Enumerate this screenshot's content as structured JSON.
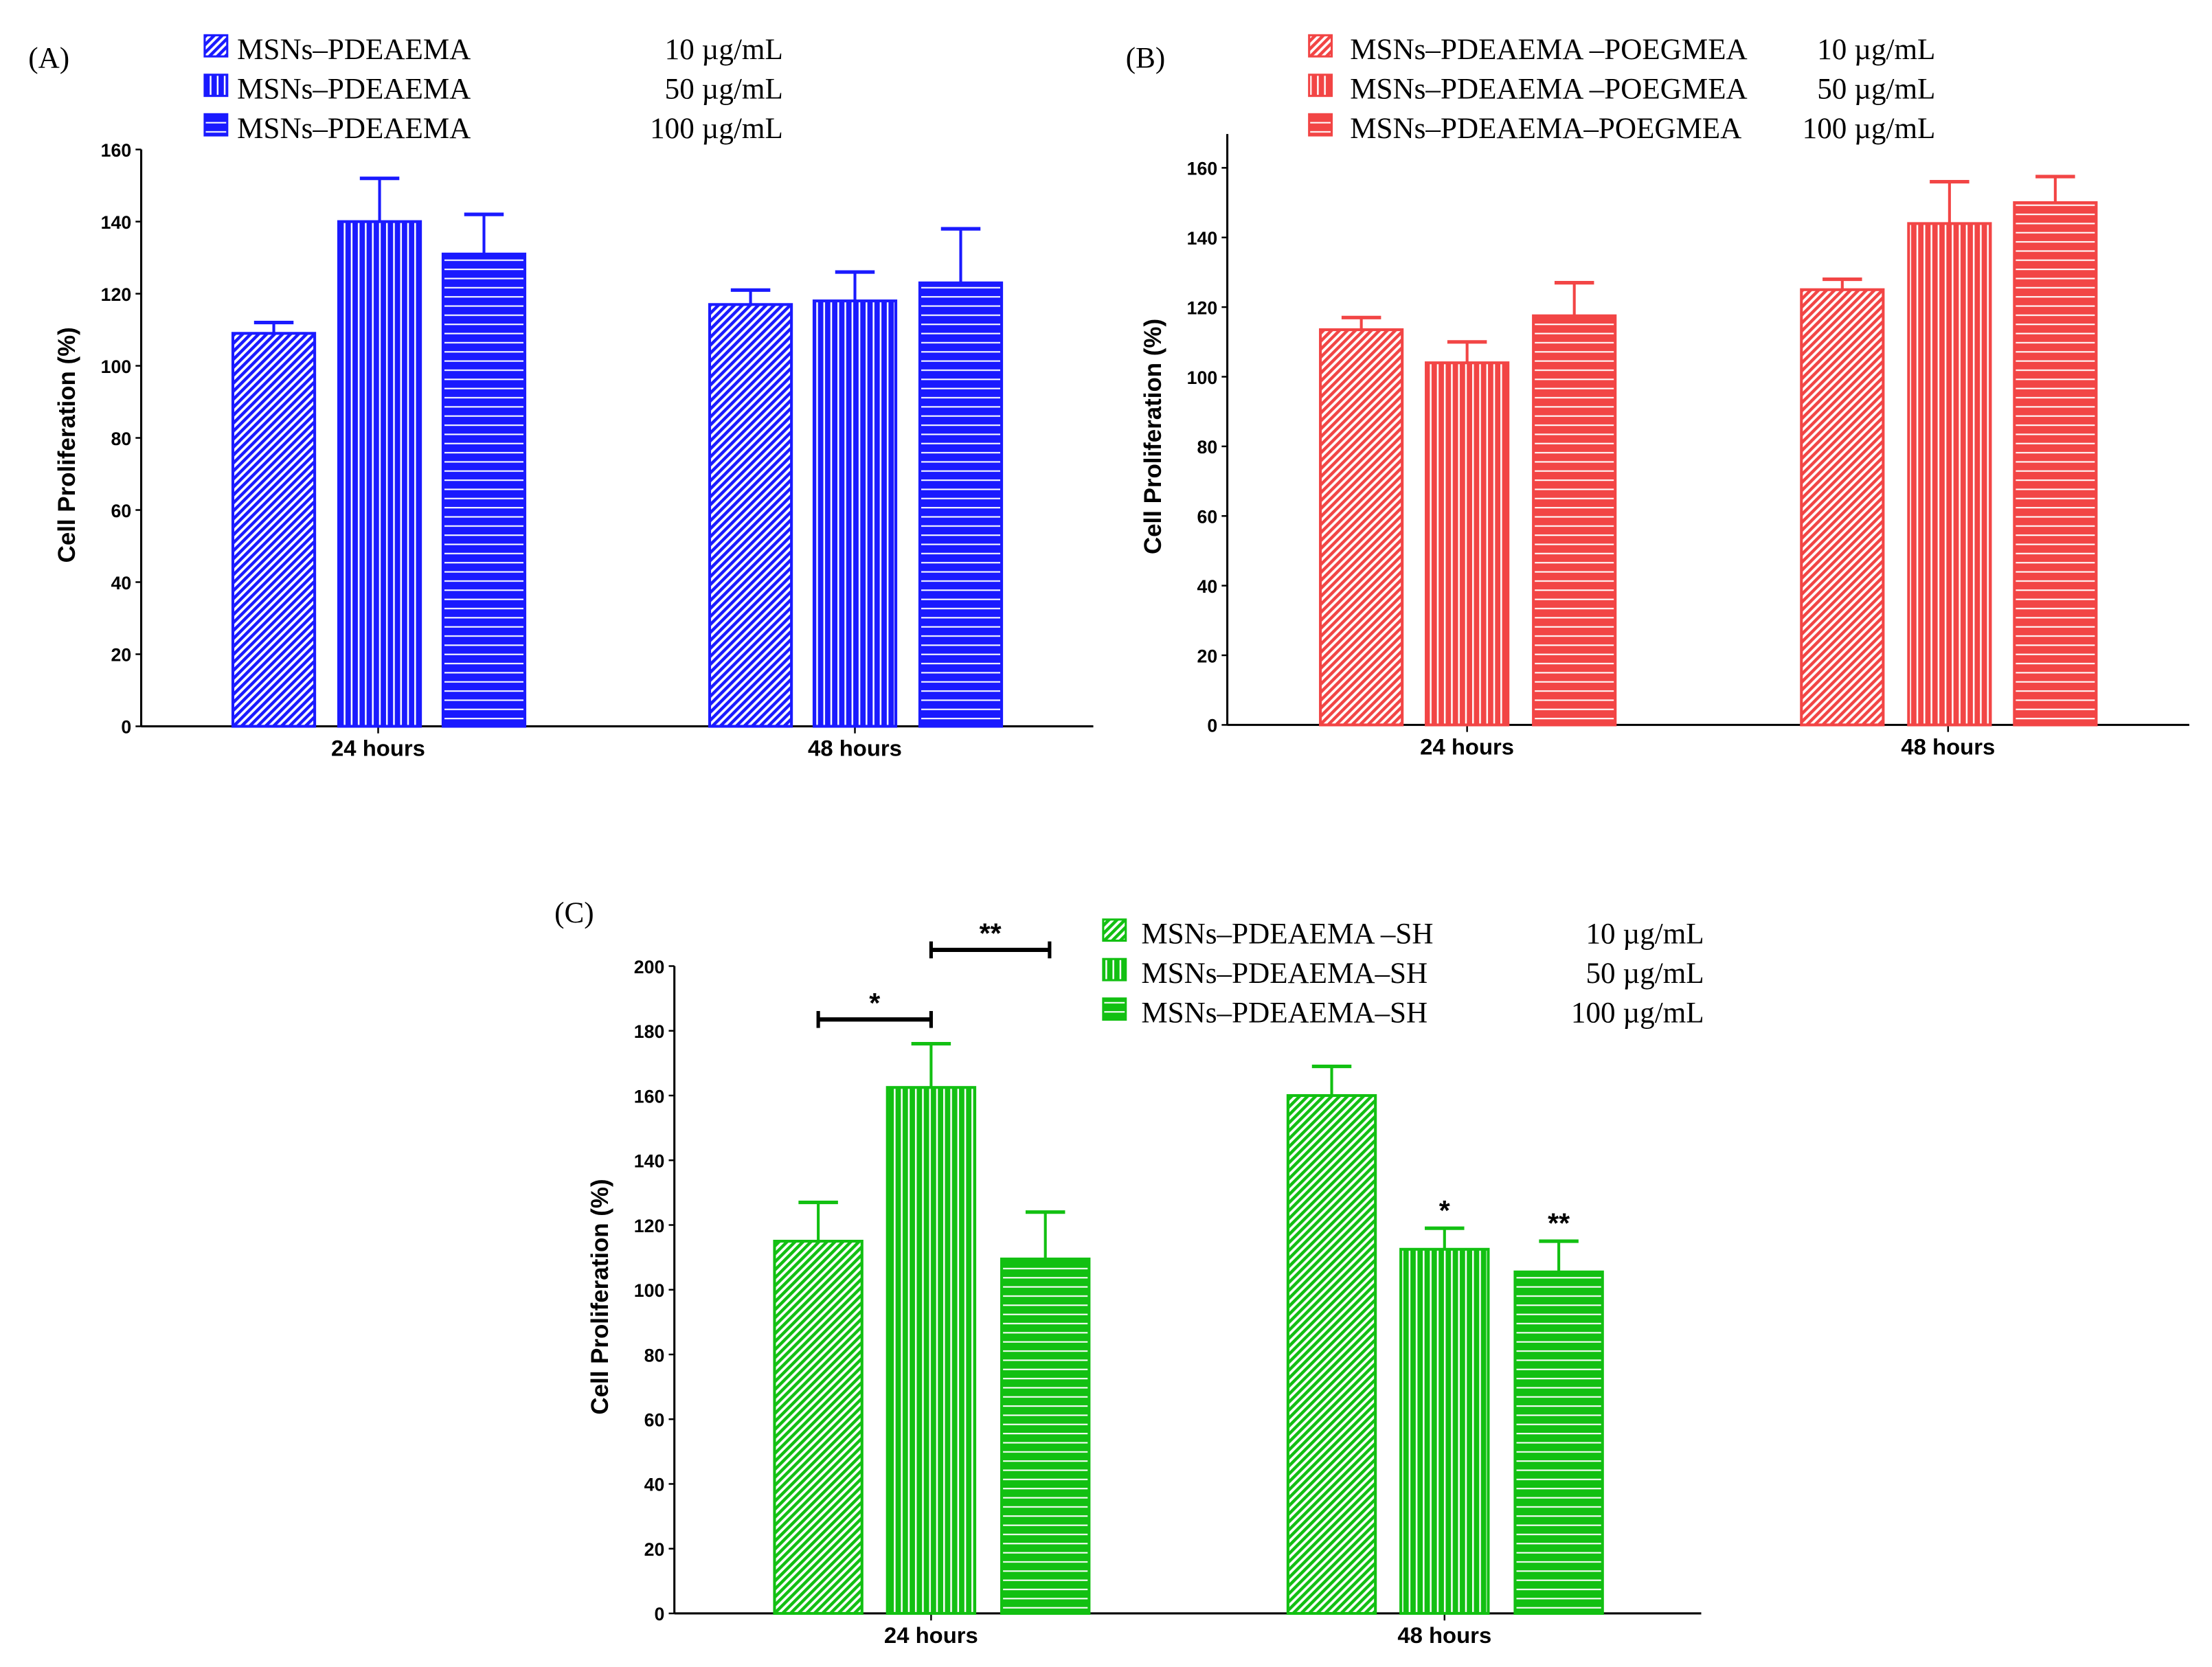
{
  "chart_data": [
    {
      "type": "bar",
      "panel_label": "(A)",
      "ylabel": "Cell Proliferation (%)",
      "xlabel": "",
      "categories": [
        "24 hours",
        "48 hours"
      ],
      "ylim": [
        0,
        160
      ],
      "yticks": [
        0,
        20,
        40,
        60,
        80,
        100,
        120,
        140,
        160
      ],
      "color": "#1a1aff",
      "series": [
        {
          "name": "MSNs–PDEAEMA",
          "concentration": "10 µg/mL",
          "pattern": "diagonal",
          "values": [
            109,
            117
          ],
          "errors": [
            3,
            4
          ]
        },
        {
          "name": "MSNs–PDEAEMA",
          "concentration": "50 µg/mL",
          "pattern": "vertical",
          "values": [
            140,
            118
          ],
          "errors": [
            12,
            8
          ]
        },
        {
          "name": "MSNs–PDEAEMA",
          "concentration": "100 µg/mL",
          "pattern": "horizontal",
          "values": [
            131,
            123
          ],
          "errors": [
            11,
            15
          ]
        }
      ],
      "annotations": []
    },
    {
      "type": "bar",
      "panel_label": "(B)",
      "ylabel": "Cell Proliferation (%)",
      "xlabel": "",
      "categories": [
        "24 hours",
        "48 hours"
      ],
      "ylim": [
        0,
        170
      ],
      "yticks": [
        0,
        20,
        40,
        60,
        80,
        100,
        120,
        140,
        160
      ],
      "color": "#f24545",
      "series": [
        {
          "name": "MSNs–PDEAEMA –POEGMEA",
          "concentration": "10 µg/mL",
          "pattern": "diagonal",
          "values": [
            113.5,
            125
          ],
          "errors": [
            3.5,
            3
          ]
        },
        {
          "name": "MSNs–PDEAEMA –POEGMEA",
          "concentration": "50 µg/mL",
          "pattern": "vertical",
          "values": [
            104,
            144
          ],
          "errors": [
            6,
            12
          ]
        },
        {
          "name": "MSNs–PDEAEMA–POEGMEA",
          "concentration": "100 µg/mL",
          "pattern": "horizontal",
          "values": [
            117.5,
            150
          ],
          "errors": [
            9.5,
            7.5
          ]
        }
      ],
      "annotations": []
    },
    {
      "type": "bar",
      "panel_label": "(C)",
      "ylabel": "Cell Proliferation (%)",
      "xlabel": "",
      "categories": [
        "24 hours",
        "48 hours"
      ],
      "ylim": [
        0,
        200
      ],
      "yticks": [
        0,
        20,
        40,
        60,
        80,
        100,
        120,
        140,
        160,
        180,
        200
      ],
      "color": "#12c012",
      "series": [
        {
          "name": "MSNs–PDEAEMA –SH",
          "concentration": "10 µg/mL",
          "pattern": "diagonal",
          "values": [
            115,
            160
          ],
          "errors": [
            12,
            9
          ]
        },
        {
          "name": "MSNs–PDEAEMA–SH",
          "concentration": "50 µg/mL",
          "pattern": "vertical",
          "values": [
            162.5,
            112.5
          ],
          "errors": [
            13.5,
            6.5
          ]
        },
        {
          "name": "MSNs–PDEAEMA–SH",
          "concentration": "100 µg/mL",
          "pattern": "horizontal",
          "values": [
            109.5,
            105.5
          ],
          "errors": [
            14.5,
            9.5
          ]
        }
      ],
      "annotations": [
        {
          "type": "bracket",
          "label": "*",
          "from_series": 0,
          "to_series": 1,
          "category": 0,
          "y": 183.5
        },
        {
          "type": "bracket",
          "label": "**",
          "from_series": 1,
          "to_series": 2,
          "category": 0,
          "y": 205
        },
        {
          "type": "star",
          "label": "*",
          "series": 1,
          "category": 1
        },
        {
          "type": "star",
          "label": "**",
          "series": 2,
          "category": 1
        }
      ]
    }
  ]
}
